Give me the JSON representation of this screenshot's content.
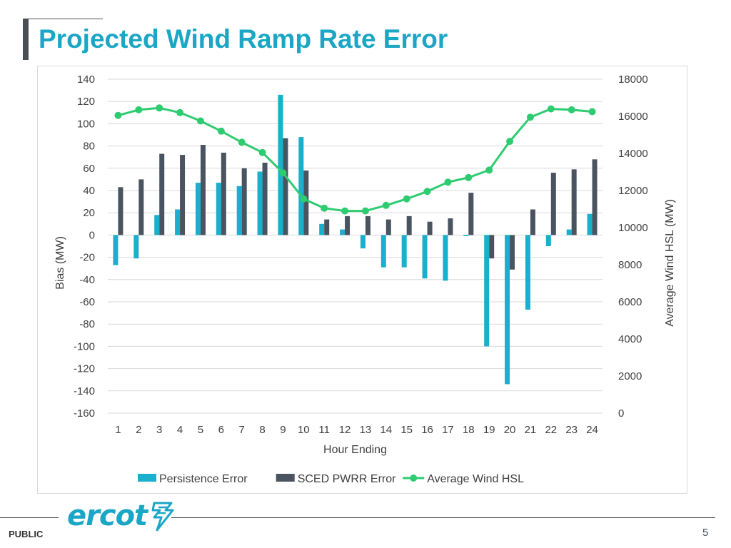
{
  "slide": {
    "title": "Projected Wind Ramp Rate Error",
    "footer_label": "PUBLIC",
    "page_number": "5",
    "logo_text": "ercot",
    "logo_mark_icon": "ercot-lightning-mark",
    "accent_color": "#1aa6c4",
    "dark_color": "#4a4f56"
  },
  "chart_data": {
    "type": "bar",
    "title": "",
    "xlabel": "Hour Ending",
    "ylabel": "Bias (MW)",
    "y2label": "Average Wind HSL (MW)",
    "categories": [
      "1",
      "2",
      "3",
      "4",
      "5",
      "6",
      "7",
      "8",
      "9",
      "10",
      "11",
      "12",
      "13",
      "14",
      "15",
      "16",
      "17",
      "18",
      "19",
      "20",
      "21",
      "22",
      "23",
      "24"
    ],
    "ylim": [
      -160,
      140
    ],
    "yticks": [
      "140",
      "120",
      "100",
      "80",
      "60",
      "40",
      "20",
      "0",
      "-20",
      "-40",
      "-60",
      "-80",
      "-100",
      "-120",
      "-140",
      "-160"
    ],
    "ytick_values": [
      140,
      120,
      100,
      80,
      60,
      40,
      20,
      0,
      -20,
      -40,
      -60,
      -80,
      -100,
      -120,
      -140,
      -160
    ],
    "y2lim": [
      0,
      18000
    ],
    "y2ticks": [
      "18000",
      "16000",
      "14000",
      "12000",
      "10000",
      "8000",
      "6000",
      "4000",
      "2000",
      "0"
    ],
    "y2tick_values": [
      18000,
      16000,
      14000,
      12000,
      10000,
      8000,
      6000,
      4000,
      2000,
      0
    ],
    "grid": true,
    "legend_position": "bottom",
    "series": [
      {
        "name": "Persistence Error",
        "type": "bar",
        "axis": "left",
        "color": "#1aafcc",
        "values": [
          -27,
          -21,
          18,
          23,
          47,
          47,
          44,
          57,
          126,
          88,
          10,
          5,
          -12,
          -29,
          -29,
          -39,
          -41,
          -1,
          -100,
          -134,
          -67,
          -10,
          5,
          19
        ]
      },
      {
        "name": "SCED PWRR Error",
        "type": "bar",
        "axis": "left",
        "color": "#4a5460",
        "values": [
          43,
          50,
          73,
          72,
          81,
          74,
          60,
          65,
          87,
          58,
          14,
          17,
          17,
          14,
          17,
          12,
          15,
          38,
          -21,
          -31,
          23,
          56,
          59,
          68
        ]
      },
      {
        "name": "Average Wind HSL",
        "type": "line",
        "axis": "right",
        "color": "#2ecc71",
        "values": [
          16050,
          16350,
          16450,
          16200,
          15750,
          15200,
          14600,
          14050,
          12950,
          11550,
          11050,
          10900,
          10900,
          11200,
          11550,
          11950,
          12450,
          12700,
          13100,
          14650,
          15950,
          16400,
          16350,
          16250
        ]
      }
    ]
  }
}
